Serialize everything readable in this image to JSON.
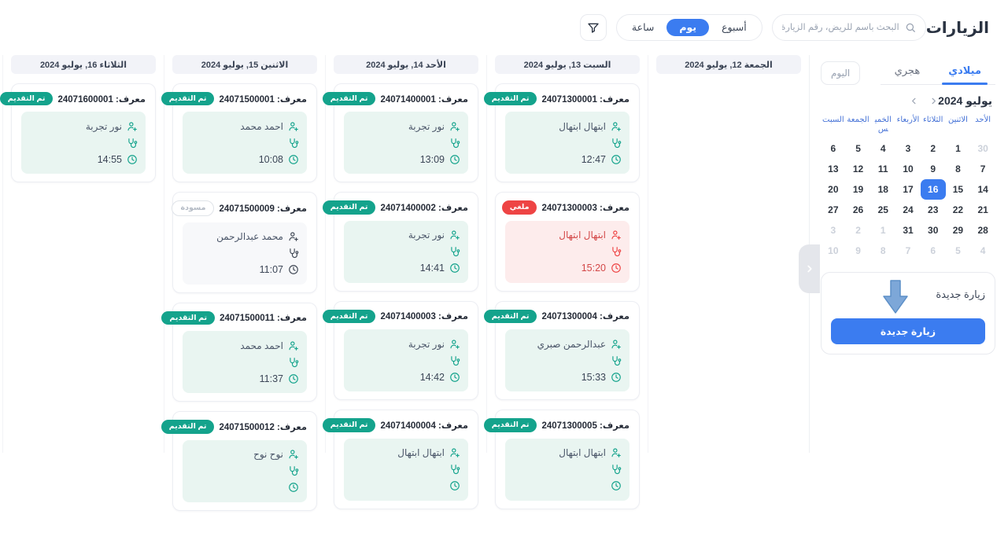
{
  "page": {
    "title": "الزيارات"
  },
  "toolbar": {
    "search_placeholder": "البحث باسم للريض، رقم الزيارة",
    "view_options": [
      {
        "key": "week",
        "label": "أسبوع",
        "active": false
      },
      {
        "key": "day",
        "label": "يوم",
        "active": true
      },
      {
        "key": "hour",
        "label": "ساعة",
        "active": false
      }
    ]
  },
  "board": {
    "id_prefix": "معرف:",
    "columns": [
      {
        "key": "friday",
        "header": "الجمعة 12, يوليو 2024",
        "cards": []
      },
      {
        "key": "saturday",
        "header": "السبت 13, يوليو 2024",
        "cards": [
          {
            "id": "24071300001",
            "badge": "تم التقديم",
            "status": "submitted",
            "patient": "ابتهال ابتهال",
            "time": "12:47"
          },
          {
            "id": "24071300003",
            "badge": "ملغي",
            "status": "cancelled",
            "patient": "ابتهال ابتهال",
            "time": "15:20"
          },
          {
            "id": "24071300004",
            "badge": "تم التقديم",
            "status": "submitted",
            "patient": "عبدالرحمن صبري",
            "time": "15:33"
          },
          {
            "id": "24071300005",
            "badge": "تم التقديم",
            "status": "submitted",
            "patient": "ابتهال ابتهال",
            "time": ""
          }
        ]
      },
      {
        "key": "sunday",
        "header": "الأحد 14, يوليو 2024",
        "cards": [
          {
            "id": "24071400001",
            "badge": "تم التقديم",
            "status": "submitted",
            "patient": "نور تجربة",
            "time": "13:09"
          },
          {
            "id": "24071400002",
            "badge": "تم التقديم",
            "status": "submitted",
            "patient": "نور تجربة",
            "time": "14:41"
          },
          {
            "id": "24071400003",
            "badge": "تم التقديم",
            "status": "submitted",
            "patient": "نور تجربة",
            "time": "14:42"
          },
          {
            "id": "24071400004",
            "badge": "تم التقديم",
            "status": "submitted",
            "patient": "ابتهال ابتهال",
            "time": ""
          }
        ]
      },
      {
        "key": "monday",
        "header": "الاثنين 15, يوليو 2024",
        "cards": [
          {
            "id": "24071500001",
            "badge": "تم التقديم",
            "status": "submitted",
            "patient": "احمد محمد",
            "time": "10:08"
          },
          {
            "id": "24071500009",
            "badge": "مسودة",
            "status": "draft",
            "patient": "محمد عبدالرحمن",
            "time": "11:07"
          },
          {
            "id": "24071500011",
            "badge": "تم التقديم",
            "status": "submitted",
            "patient": "احمد محمد",
            "time": "11:37"
          },
          {
            "id": "24071500012",
            "badge": "تم التقديم",
            "status": "submitted",
            "patient": "نوح نوح",
            "time": ""
          }
        ]
      },
      {
        "key": "tuesday",
        "header": "الثلاثاء 16, يوليو 2024",
        "cards": [
          {
            "id": "24071600001",
            "badge": "تم التقديم",
            "status": "submitted",
            "patient": "نور تجربة",
            "time": "14:55"
          }
        ]
      }
    ]
  },
  "sidebar": {
    "tabs": [
      {
        "key": "gregorian",
        "label": "ميلادي",
        "active": true
      },
      {
        "key": "hijri",
        "label": "هجري",
        "active": false
      }
    ],
    "today_button": "اليوم",
    "calendar": {
      "title": "يوليو 2024",
      "weekdays": [
        "الأحد",
        "الاثنين",
        "الثلاثاء",
        "الأربعاء",
        "الخميس",
        "الجمعة",
        "السبت"
      ],
      "weeks": [
        [
          {
            "d": "30",
            "muted": true
          },
          {
            "d": "1"
          },
          {
            "d": "2"
          },
          {
            "d": "3"
          },
          {
            "d": "4"
          },
          {
            "d": "5"
          },
          {
            "d": "6"
          }
        ],
        [
          {
            "d": "7"
          },
          {
            "d": "8"
          },
          {
            "d": "9"
          },
          {
            "d": "10"
          },
          {
            "d": "11"
          },
          {
            "d": "12"
          },
          {
            "d": "13"
          }
        ],
        [
          {
            "d": "14"
          },
          {
            "d": "15"
          },
          {
            "d": "16",
            "selected": true
          },
          {
            "d": "17"
          },
          {
            "d": "18"
          },
          {
            "d": "19"
          },
          {
            "d": "20"
          }
        ],
        [
          {
            "d": "21"
          },
          {
            "d": "22"
          },
          {
            "d": "23"
          },
          {
            "d": "24"
          },
          {
            "d": "25"
          },
          {
            "d": "26"
          },
          {
            "d": "27"
          }
        ],
        [
          {
            "d": "28"
          },
          {
            "d": "29"
          },
          {
            "d": "30"
          },
          {
            "d": "31"
          },
          {
            "d": "1",
            "muted": true
          },
          {
            "d": "2",
            "muted": true
          },
          {
            "d": "3",
            "muted": true
          }
        ],
        [
          {
            "d": "4",
            "muted": true
          },
          {
            "d": "5",
            "muted": true
          },
          {
            "d": "6",
            "muted": true
          },
          {
            "d": "7",
            "muted": true
          },
          {
            "d": "8",
            "muted": true
          },
          {
            "d": "9",
            "muted": true
          },
          {
            "d": "10",
            "muted": true
          }
        ]
      ]
    },
    "new_visit": {
      "label": "زيارة جديدة",
      "button": "زيارة جديدة"
    }
  },
  "colors": {
    "accent": "#3b7cf0",
    "submitted": "#14a38c",
    "cancelled": "#ee4444",
    "draft_text": "#b3bac4"
  }
}
